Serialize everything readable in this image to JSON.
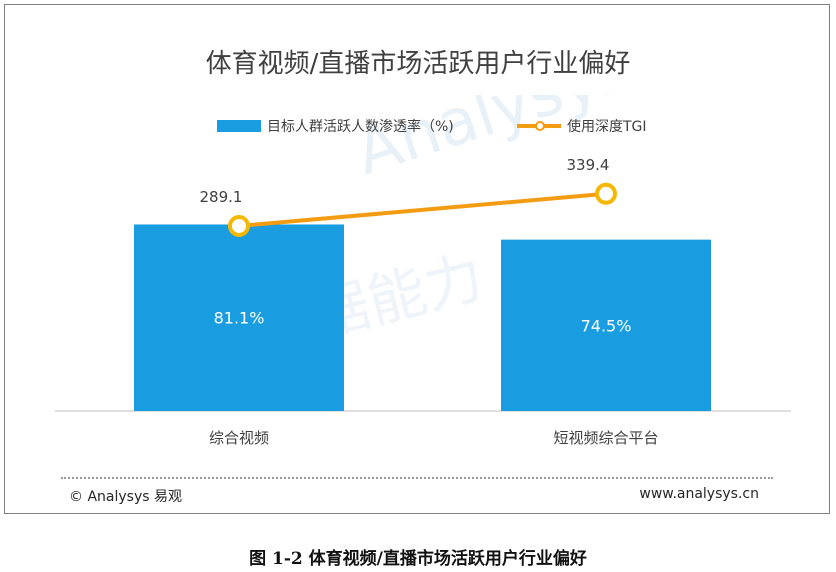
{
  "figure_caption": "图 1-2 体育视频/直播市场活跃用户行业偏好",
  "footer": {
    "copyright": "© Analysys 易观",
    "website": "www.analysys.cn"
  },
  "watermark": {
    "brand": "Analysys 易观",
    "slogan": "让数据能力"
  },
  "colors": {
    "bar": "#1a9de0",
    "line": "#f39c12",
    "text": "#404040"
  },
  "chart_data": {
    "type": "bar",
    "title": "体育视频/直播市场活跃用户行业偏好",
    "categories": [
      "综合视频",
      "短视频综合平台"
    ],
    "series": [
      {
        "name": "目标人群活跃人数渗透率（%)",
        "kind": "bar",
        "axis": "left",
        "values": [
          81.1,
          74.5
        ],
        "labels": [
          "81.1%",
          "74.5%"
        ]
      },
      {
        "name": "使用深度TGI",
        "kind": "line",
        "axis": "right",
        "values": [
          289.1,
          339.4
        ],
        "labels": [
          "289.1",
          "339.4"
        ]
      }
    ],
    "legend_position": "top",
    "grid": false
  }
}
